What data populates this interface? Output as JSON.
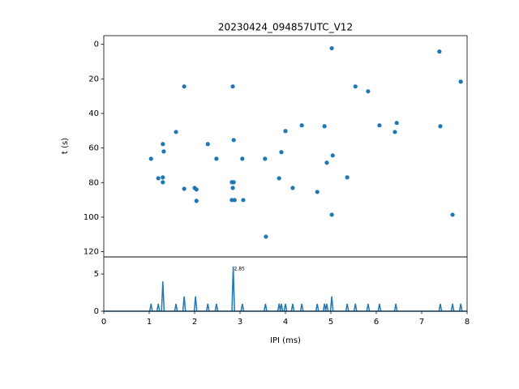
{
  "chart_data": [
    {
      "type": "scatter",
      "title": "20230424_094857UTC_V12",
      "y_label": "t (s)",
      "color": "#1f77b4",
      "x": [
        5.02,
        7.39,
        7.86,
        1.77,
        2.84,
        5.54,
        5.82,
        1.59,
        4.0,
        4.36,
        4.86,
        6.07,
        6.45,
        6.41,
        7.41,
        1.3,
        2.29,
        2.86,
        1.32,
        3.91,
        1.04,
        2.48,
        3.05,
        3.55,
        5.04,
        4.91,
        1.2,
        1.3,
        3.86,
        5.36,
        1.3,
        2.82,
        2.86,
        2.84,
        1.77,
        2.0,
        2.04,
        4.16,
        4.7,
        2.04,
        2.82,
        2.88,
        3.07,
        5.02,
        7.68,
        3.57
      ],
      "values": [
        2.3,
        4.2,
        21.6,
        24.4,
        24.4,
        24.4,
        27.2,
        50.7,
        50.2,
        46.9,
        47.4,
        46.9,
        45.5,
        50.7,
        47.4,
        57.7,
        57.7,
        55.4,
        62.0,
        62.4,
        66.2,
        66.2,
        66.2,
        66.2,
        64.3,
        68.5,
        77.5,
        77.0,
        77.5,
        77.0,
        79.8,
        79.8,
        79.8,
        83.1,
        83.6,
        83.1,
        84.0,
        83.1,
        85.4,
        90.6,
        90.1,
        90.1,
        90.1,
        98.6,
        98.6,
        111.3
      ],
      "xlim": [
        0,
        8
      ],
      "ylim": [
        123,
        -5
      ],
      "yticks": [
        0,
        20,
        40,
        60,
        80,
        100,
        120
      ]
    },
    {
      "type": "spikes",
      "x_label": "IPI (ms)",
      "color": "#1f77b4",
      "annotation": "2.85",
      "x": [
        1.04,
        1.2,
        1.3,
        1.59,
        1.77,
        2.02,
        2.29,
        2.48,
        2.85,
        3.05,
        3.56,
        3.86,
        3.91,
        4.0,
        4.16,
        4.36,
        4.7,
        4.86,
        4.91,
        5.02,
        5.36,
        5.54,
        5.82,
        6.07,
        6.43,
        7.41,
        7.68,
        7.86
      ],
      "values": [
        1,
        1,
        4,
        1,
        2,
        2,
        1,
        1,
        6,
        1,
        1,
        1,
        1,
        1,
        1,
        1,
        1,
        1,
        1,
        2,
        1,
        1,
        1,
        1,
        1,
        1,
        1,
        1
      ],
      "xlim": [
        0,
        8
      ],
      "xticks": [
        0,
        1,
        2,
        3,
        4,
        5,
        6,
        7,
        8
      ],
      "ylim": [
        0,
        7.3
      ],
      "yticks": [
        0,
        5
      ]
    }
  ]
}
